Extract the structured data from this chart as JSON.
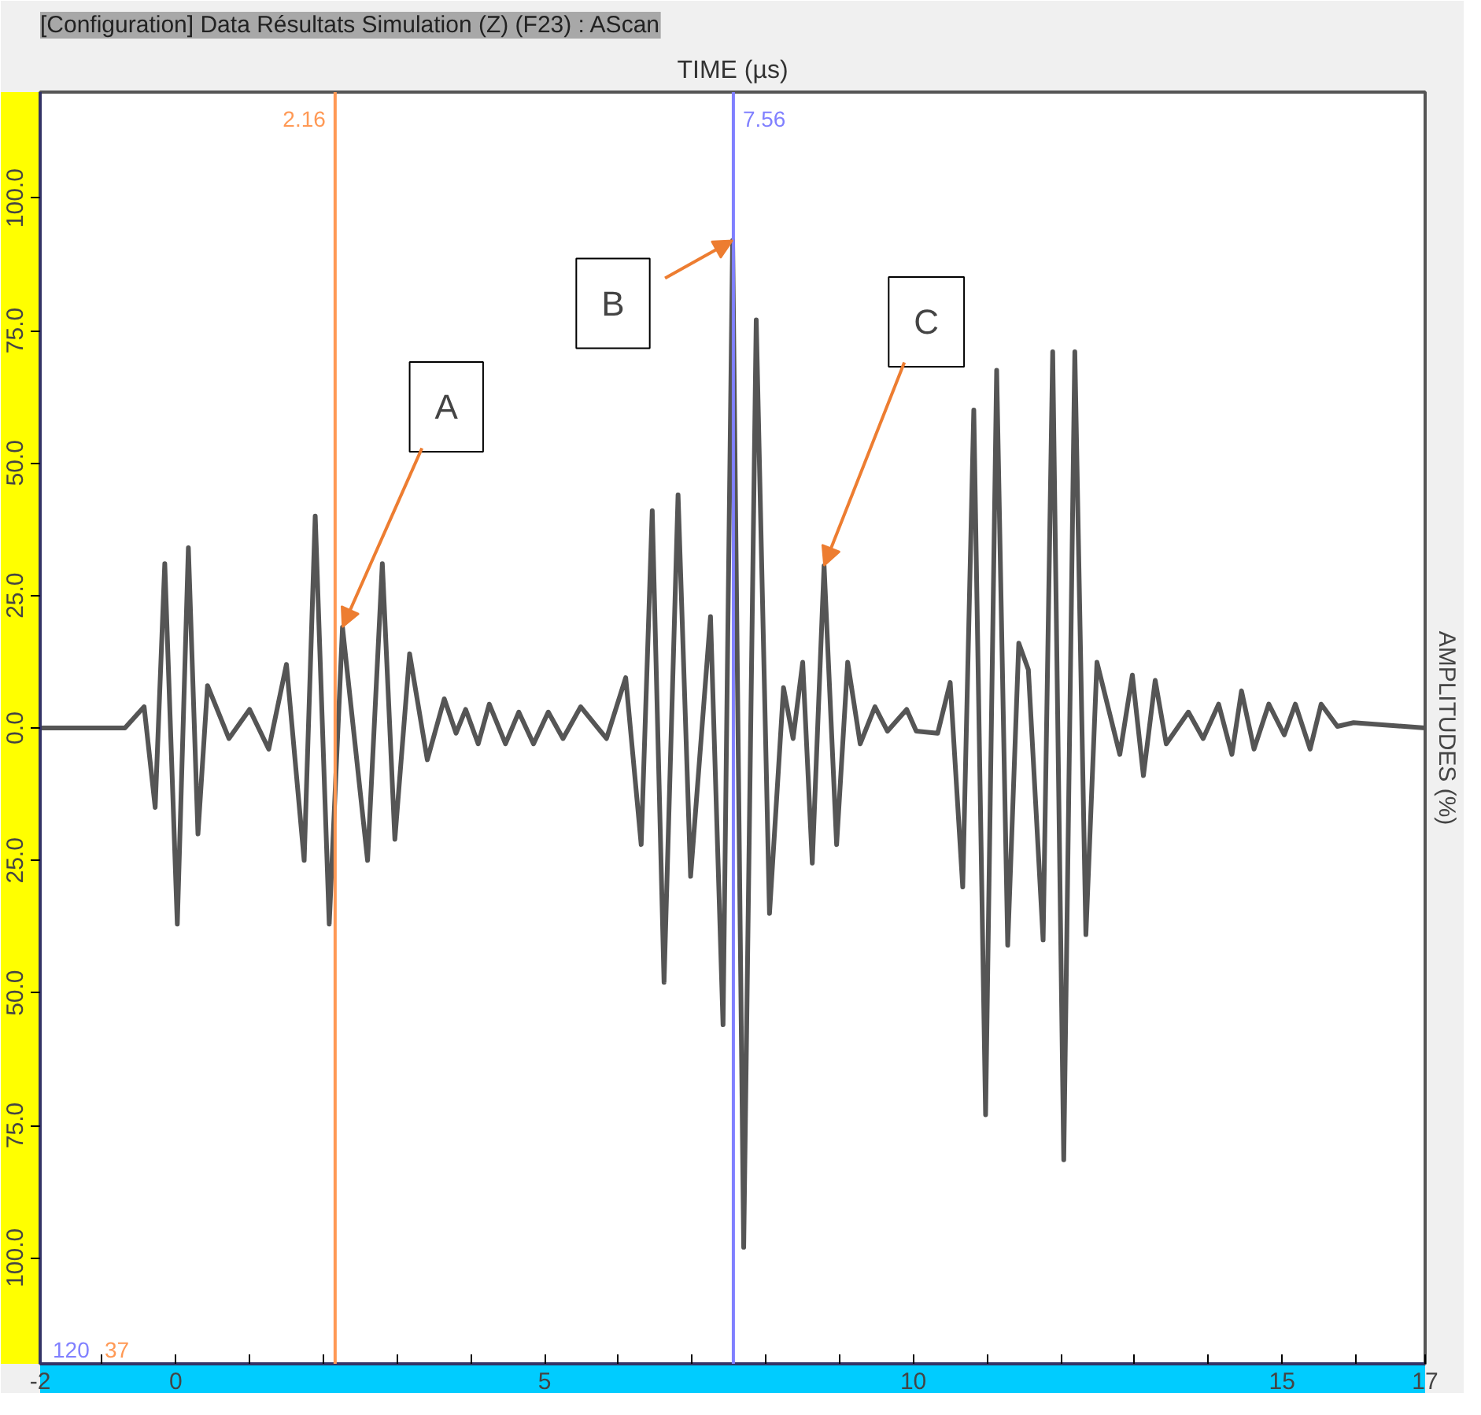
{
  "chart_data": {
    "type": "line",
    "title": "[Configuration] Data Résultats Simulation (Z) (F23) : AScan",
    "xlabel": "TIME (µs)",
    "ylabel": "AMPLITUDES (%)",
    "x": [
      -1.84,
      -0.69,
      -0.43,
      -0.28,
      -0.15,
      0.02,
      0.17,
      0.3,
      0.43,
      0.72,
      1.0,
      1.26,
      1.5,
      1.74,
      1.89,
      2.08,
      2.26,
      2.6,
      2.8,
      2.97,
      3.17,
      3.41,
      3.64,
      3.8,
      3.93,
      4.1,
      4.25,
      4.47,
      4.65,
      4.85,
      5.05,
      5.25,
      5.49,
      5.84,
      6.1,
      6.31,
      6.46,
      6.62,
      6.81,
      6.98,
      7.25,
      7.42,
      7.55,
      7.7,
      7.87,
      8.05,
      8.24,
      8.37,
      8.5,
      8.63,
      8.79,
      8.96,
      9.11,
      9.28,
      9.48,
      9.65,
      9.91,
      10.04,
      10.33,
      10.5,
      10.67,
      10.82,
      10.98,
      11.13,
      11.28,
      11.43,
      11.56,
      11.76,
      11.89,
      12.04,
      12.19,
      12.34,
      12.49,
      12.8,
      12.97,
      13.12,
      13.28,
      13.43,
      13.73,
      13.93,
      14.14,
      14.32,
      14.45,
      14.62,
      14.82,
      15.03,
      15.18,
      15.38,
      15.53,
      15.75,
      15.97,
      16.94
    ],
    "series": [
      {
        "color": "#555555",
        "values": [
          0,
          0,
          4,
          -15,
          31,
          -37,
          34,
          -20,
          8,
          -2,
          3.5,
          -4,
          12,
          -25,
          40,
          -37,
          19,
          -25,
          31,
          -21,
          14,
          -6,
          5.5,
          -1,
          3.5,
          -3,
          4.5,
          -3,
          3,
          -3,
          3,
          -2,
          4,
          -2,
          9.5,
          -22,
          41,
          -48,
          44,
          -28,
          21,
          -56,
          92,
          -98,
          77,
          -35,
          7.6,
          -2,
          12.4,
          -25.5,
          30.6,
          -22,
          12.4,
          -3,
          4,
          -0.6,
          3.5,
          -0.6,
          -1,
          8.6,
          -30,
          60,
          -73,
          67.5,
          -41,
          16,
          11,
          -40,
          71,
          -81.5,
          71,
          -39,
          12.4,
          -5,
          10,
          -9,
          9,
          -3,
          3,
          -2,
          4.5,
          -5,
          7,
          -4,
          4.5,
          -1.3,
          4.5,
          -4,
          4.5,
          0.3,
          1,
          0
        ]
      }
    ],
    "xlim": [
      -1.84,
      16.94
    ],
    "xticks": [
      {
        "value": -1.84,
        "label": "-2"
      },
      {
        "value": -1,
        "label": null
      },
      0,
      {
        "value": 1,
        "label": null
      },
      {
        "value": 2,
        "label": null
      },
      {
        "value": 3,
        "label": null
      },
      {
        "value": 4,
        "label": null
      },
      5,
      {
        "value": 6,
        "label": null
      },
      {
        "value": 7,
        "label": null
      },
      {
        "value": 8,
        "label": null
      },
      {
        "value": 9,
        "label": null
      },
      10,
      {
        "value": 11,
        "label": null
      },
      {
        "value": 12,
        "label": null
      },
      {
        "value": 13,
        "label": null
      },
      {
        "value": 14,
        "label": null
      },
      15,
      {
        "value": 16,
        "label": null
      },
      {
        "value": 16.94,
        "label": "17"
      }
    ],
    "ylim": [
      -120,
      120
    ],
    "yticks": [
      {
        "value": -100,
        "label": "100.0"
      },
      {
        "value": -75,
        "label": "75.0"
      },
      {
        "value": -50,
        "label": "50.0"
      },
      {
        "value": -25,
        "label": "25.0"
      },
      {
        "value": 0,
        "label": "0.0"
      },
      {
        "value": 25,
        "label": "25.0"
      },
      {
        "value": 50,
        "label": "50.0"
      },
      {
        "value": 75,
        "label": "75.0"
      },
      {
        "value": 100,
        "label": "100.0"
      }
    ],
    "ref_lines": [
      {
        "axis": "x",
        "value": 2.16,
        "label": "2.16",
        "color": "#ff9955"
      },
      {
        "axis": "x",
        "value": 7.56,
        "label": "7.56",
        "color": "#8080ff"
      }
    ],
    "annotations": [
      {
        "text": "A",
        "x": 2.26,
        "y": 19
      },
      {
        "text": "B",
        "x": 7.55,
        "y": 92
      },
      {
        "text": "C",
        "x": 8.79,
        "y": 30.6
      },
      "120",
      "37"
    ],
    "grid": false
  }
}
